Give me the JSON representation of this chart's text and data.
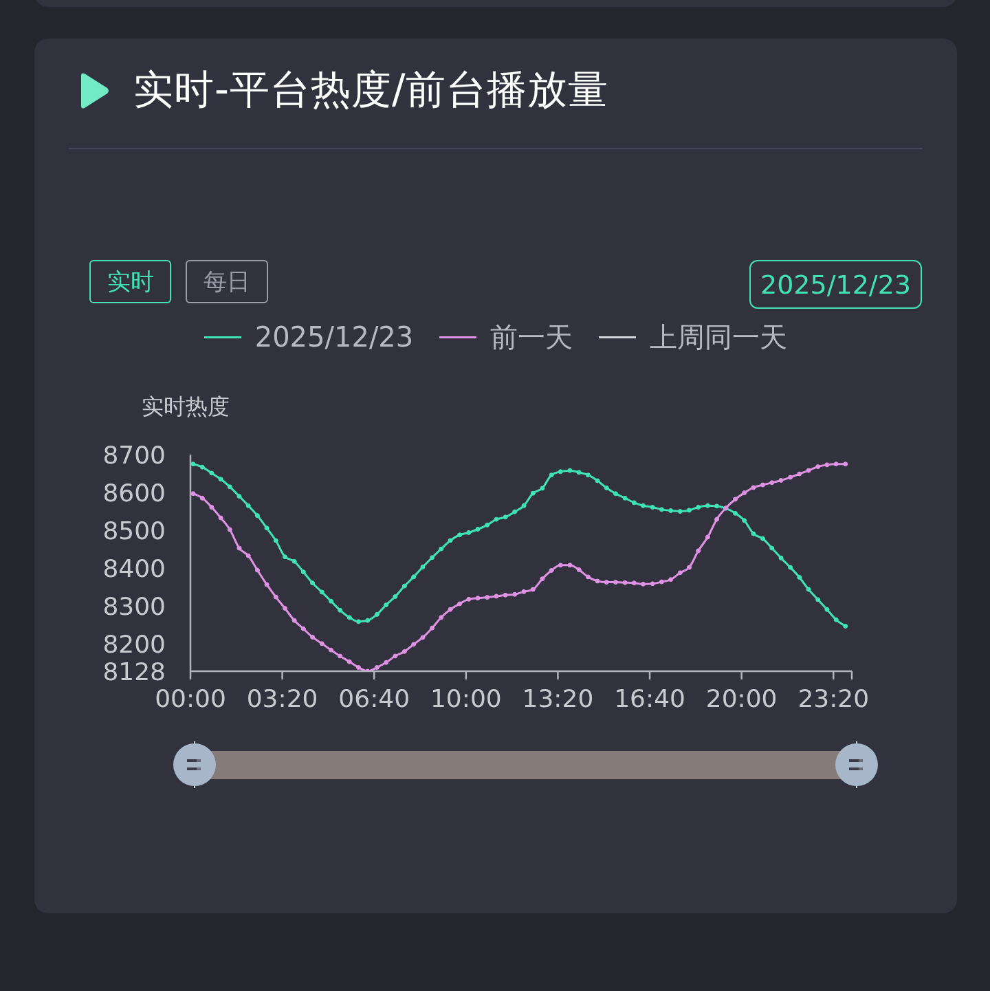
{
  "chart_data": {
    "type": "line",
    "title": "实时-平台热度/前台播放量",
    "ylabel": "实时热度",
    "annotations": [
      "实时",
      "每日",
      "2025/12/23"
    ],
    "x": [
      0.1,
      0.43,
      0.77,
      1.1,
      1.43,
      1.77,
      2.1,
      2.43,
      2.77,
      3.1,
      3.43,
      3.77,
      4.1,
      4.43,
      4.77,
      5.1,
      5.43,
      5.77,
      6.1,
      6.43,
      6.77,
      7.1,
      7.43,
      7.77,
      8.1,
      8.43,
      8.77,
      9.1,
      9.43,
      9.77,
      10.1,
      10.43,
      10.77,
      11.1,
      11.43,
      11.77,
      12.1,
      12.43,
      12.77,
      13.1,
      13.43,
      13.77,
      14.1,
      14.43,
      14.77,
      15.1,
      15.43,
      15.77,
      16.1,
      16.43,
      16.77,
      17.1,
      17.43,
      17.77,
      18.1,
      18.43,
      18.77,
      19.1,
      19.43,
      19.77,
      20.1,
      20.43,
      20.77,
      21.1,
      21.43,
      21.77,
      22.1,
      22.43,
      22.77,
      23.1,
      23.43,
      23.77
    ],
    "series": [
      {
        "name": "2025/12/23",
        "color": "#3fe3b6",
        "values": [
          8675,
          8667,
          8651,
          8635,
          8615,
          8590,
          8565,
          8539,
          8506,
          8473,
          8430,
          8418,
          8390,
          8361,
          8337,
          8313,
          8289,
          8270,
          8259,
          8262,
          8278,
          8303,
          8325,
          8353,
          8377,
          8403,
          8428,
          8451,
          8473,
          8488,
          8494,
          8503,
          8514,
          8529,
          8535,
          8549,
          8565,
          8598,
          8611,
          8646,
          8655,
          8658,
          8653,
          8646,
          8631,
          8612,
          8597,
          8585,
          8573,
          8565,
          8561,
          8555,
          8552,
          8550,
          8553,
          8561,
          8565,
          8564,
          8558,
          8545,
          8526,
          8491,
          8478,
          8453,
          8427,
          8402,
          8376,
          8344,
          8317,
          8291,
          8264,
          8247
        ]
      },
      {
        "name": "前一天",
        "color": "#df92e4",
        "values": [
          8597,
          8585,
          8561,
          8533,
          8502,
          8453,
          8433,
          8395,
          8357,
          8324,
          8294,
          8262,
          8240,
          8218,
          8201,
          8184,
          8168,
          8153,
          8138,
          8128,
          8138,
          8151,
          8168,
          8180,
          8199,
          8217,
          8242,
          8270,
          8291,
          8306,
          8318,
          8321,
          8323,
          8326,
          8329,
          8331,
          8338,
          8344,
          8372,
          8394,
          8408,
          8408,
          8396,
          8377,
          8366,
          8363,
          8363,
          8362,
          8361,
          8358,
          8359,
          8364,
          8370,
          8388,
          8402,
          8446,
          8482,
          8529,
          8559,
          8582,
          8599,
          8613,
          8620,
          8626,
          8632,
          8640,
          8649,
          8658,
          8668,
          8673,
          8675,
          8675
        ]
      },
      {
        "name": "上周同一天",
        "color": "#d4d4da",
        "values": [
          null,
          null,
          null,
          null,
          null,
          null,
          null,
          null,
          null,
          null,
          null,
          null,
          null,
          null,
          null,
          null,
          null,
          null,
          null,
          null,
          null,
          null,
          null,
          null,
          null,
          null,
          null,
          null,
          null,
          null,
          null,
          null,
          null,
          null,
          null,
          null,
          null,
          null,
          null,
          null,
          null,
          null,
          null,
          null,
          null,
          null,
          null,
          null,
          null,
          null,
          null,
          null,
          null,
          null,
          null,
          null,
          null,
          null,
          null,
          null,
          null,
          null,
          null,
          null,
          null,
          null,
          null,
          null,
          null,
          null,
          null,
          null
        ]
      }
    ],
    "xlim": [
      0,
      24
    ],
    "xticks": [
      {
        "value": 0,
        "label": "00:00"
      },
      {
        "value": 3.333,
        "label": "03:20"
      },
      {
        "value": 6.667,
        "label": "06:40"
      },
      {
        "value": 10,
        "label": "10:00"
      },
      {
        "value": 13.333,
        "label": "13:20"
      },
      {
        "value": 16.667,
        "label": "16:40"
      },
      {
        "value": 20,
        "label": "20:00"
      },
      {
        "value": 23.333,
        "label": "23:20"
      },
      {
        "value": 24,
        "label": null
      }
    ],
    "ylim": [
      8128,
      8700
    ],
    "yticks": [
      8128,
      8200,
      8300,
      8400,
      8500,
      8600,
      8700
    ],
    "legend": "top",
    "marker": "circle",
    "line_style": "solid"
  }
}
